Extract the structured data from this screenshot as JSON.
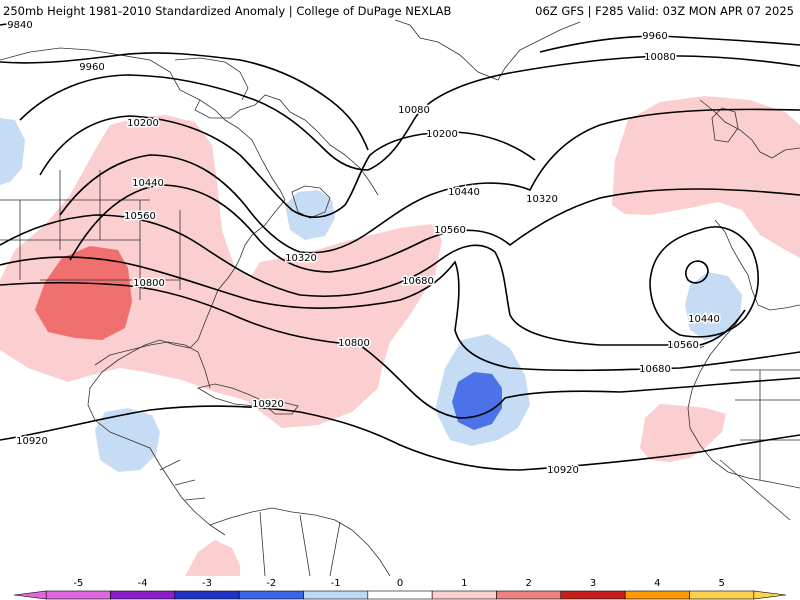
{
  "header": {
    "title_left": "250mb Height 1981-2010 Standardized Anomaly | College of DuPage NEXLAB",
    "title_right": "06Z GFS | F285 Valid: 03Z MON APR 07 2025"
  },
  "contour_labels": [
    "9840",
    "9960",
    "9960",
    "10080",
    "10080",
    "10200",
    "10200",
    "10320",
    "10320",
    "10440",
    "10440",
    "10440",
    "10560",
    "10560",
    "10560",
    "10680",
    "10680",
    "10800",
    "10800",
    "10920",
    "10920",
    "10920"
  ],
  "colorbar": {
    "ticks": [
      "-5",
      "-4",
      "-3",
      "-2",
      "-1",
      "0",
      "1",
      "2",
      "3",
      "4",
      "5"
    ],
    "colors": [
      "#e066e0",
      "#8a1fc9",
      "#1f33c9",
      "#3a66e6",
      "#bcd8f5",
      "#ffffff",
      "#fbcfcf",
      "#f08080",
      "#c81e1e",
      "#ff9900",
      "#ffd24d"
    ]
  },
  "colors": {
    "pos_light": "#fbcfcf",
    "pos_medium": "#f07070",
    "neg_light": "#c6dcf5",
    "neg_medium": "#4b72e8",
    "contour": "#000000",
    "coast": "#333333"
  }
}
